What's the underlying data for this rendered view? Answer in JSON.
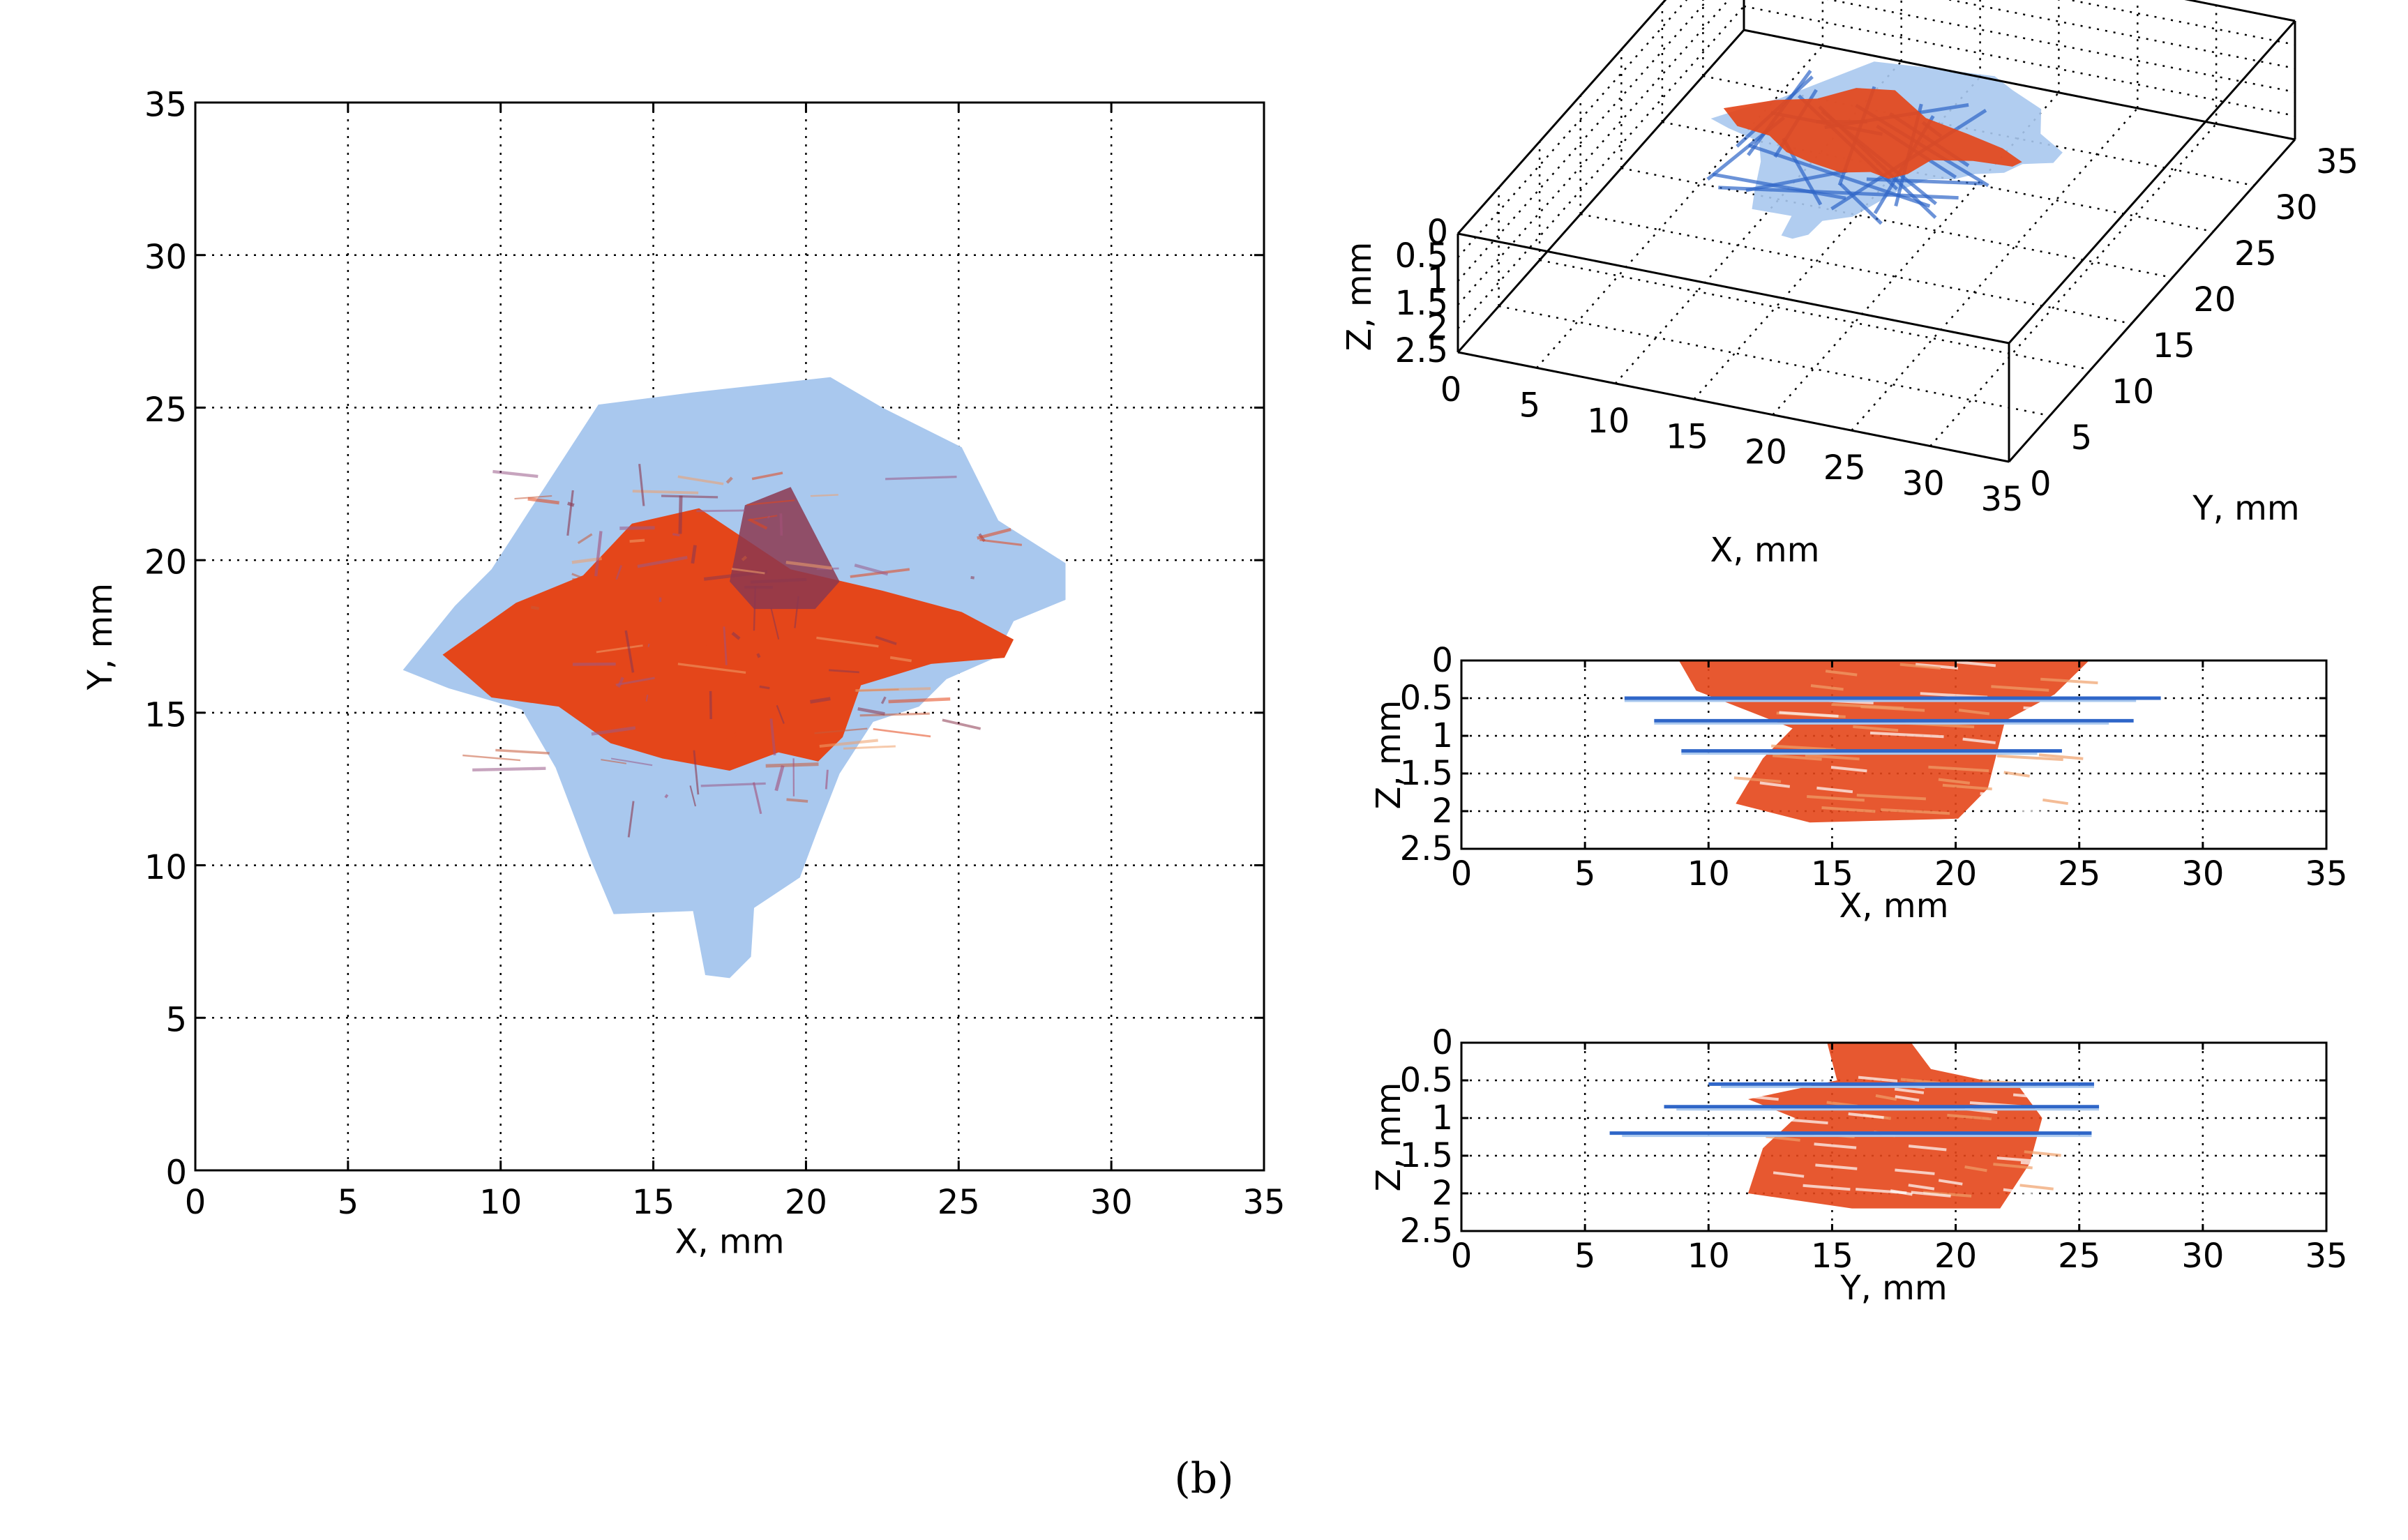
{
  "caption": "(b)",
  "colors": {
    "damage_light_blue": "#a9c8ee",
    "damage_blue": "#2f66c8",
    "damage_orange": "#e4461a",
    "damage_dark_red": "#8c3850",
    "damage_peach": "#f0a06a"
  },
  "chart_data": [
    {
      "type": "heatmap",
      "view": "top XY projection",
      "title": "",
      "xlabel": "X, mm",
      "ylabel": "Y, mm",
      "xlim": [
        0,
        35
      ],
      "ylim": [
        0,
        35
      ],
      "xticks": [
        0,
        5,
        10,
        15,
        20,
        25,
        30,
        35
      ],
      "yticks": [
        0,
        5,
        10,
        15,
        20,
        25,
        30,
        35
      ],
      "grid": true,
      "regions": [
        {
          "color": "#a9c8ee",
          "outline": [
            [
              6.8,
              16.4
            ],
            [
              8.5,
              18.5
            ],
            [
              9.7,
              19.7
            ],
            [
              10.8,
              21.4
            ],
            [
              13.2,
              25.1
            ],
            [
              16.3,
              25.5
            ],
            [
              20.8,
              26.0
            ],
            [
              22.5,
              25.0
            ],
            [
              25.1,
              23.7
            ],
            [
              26.3,
              21.3
            ],
            [
              28.5,
              19.9
            ],
            [
              28.5,
              18.7
            ],
            [
              26.8,
              18.0
            ],
            [
              26.2,
              16.8
            ],
            [
              24.6,
              16.1
            ],
            [
              23.7,
              15.2
            ],
            [
              22.2,
              14.7
            ],
            [
              21.1,
              13.0
            ],
            [
              20.4,
              11.2
            ],
            [
              19.8,
              9.6
            ],
            [
              18.3,
              8.6
            ],
            [
              18.2,
              7.0
            ],
            [
              17.5,
              6.3
            ],
            [
              16.7,
              6.4
            ],
            [
              16.3,
              8.5
            ],
            [
              13.7,
              8.4
            ],
            [
              12.9,
              10.3
            ],
            [
              11.8,
              13.2
            ],
            [
              10.7,
              15.1
            ],
            [
              8.3,
              15.8
            ],
            [
              6.8,
              16.4
            ]
          ]
        },
        {
          "color": "#e4461a",
          "outline": [
            [
              8.1,
              16.9
            ],
            [
              10.5,
              18.6
            ],
            [
              12.7,
              19.5
            ],
            [
              14.3,
              21.2
            ],
            [
              16.5,
              21.7
            ],
            [
              19.5,
              19.7
            ],
            [
              22.5,
              19.0
            ],
            [
              25.1,
              18.3
            ],
            [
              26.8,
              17.4
            ],
            [
              26.5,
              16.8
            ],
            [
              24.1,
              16.6
            ],
            [
              21.8,
              15.9
            ],
            [
              21.2,
              14.2
            ],
            [
              20.4,
              13.4
            ],
            [
              19.1,
              13.7
            ],
            [
              17.5,
              13.1
            ],
            [
              15.3,
              13.5
            ],
            [
              13.6,
              14.0
            ],
            [
              11.9,
              15.2
            ],
            [
              9.7,
              15.5
            ],
            [
              8.1,
              16.9
            ]
          ]
        },
        {
          "color": "#8c3850",
          "outline": [
            [
              17.5,
              19.3
            ],
            [
              18.0,
              21.8
            ],
            [
              19.5,
              22.4
            ],
            [
              21.1,
              19.3
            ],
            [
              20.3,
              18.4
            ],
            [
              18.3,
              18.4
            ],
            [
              17.5,
              19.3
            ]
          ]
        }
      ]
    },
    {
      "type": "heatmap",
      "view": "3D isometric",
      "title": "",
      "xlabel": "X, mm",
      "ylabel": "Y, mm",
      "zlabel": "Z, mm",
      "xlim": [
        0,
        35
      ],
      "ylim": [
        0,
        35
      ],
      "zlim": [
        0,
        2.5
      ],
      "xticks": [
        0,
        5,
        10,
        15,
        20,
        25,
        30,
        35
      ],
      "yticks": [
        0,
        5,
        10,
        15,
        20,
        25,
        30,
        35
      ],
      "zticks": [
        0,
        0.5,
        1,
        1.5,
        2,
        2.5
      ],
      "grid": true
    },
    {
      "type": "heatmap",
      "view": "side XZ projection",
      "title": "",
      "xlabel": "X, mm",
      "ylabel": "Z, mm",
      "xlim": [
        0,
        35
      ],
      "ylim": [
        0,
        2.5
      ],
      "y_reversed": true,
      "xticks": [
        0,
        5,
        10,
        15,
        20,
        25,
        30,
        35
      ],
      "yticks": [
        0,
        0.5,
        1,
        1.5,
        2,
        2.5
      ],
      "grid": true,
      "layers": [
        {
          "color": "#2f66c8",
          "z": 0.5,
          "from": 6.6,
          "to": 28.3
        },
        {
          "color": "#2f66c8",
          "z": 0.8,
          "from": 7.8,
          "to": 27.2
        },
        {
          "color": "#2f66c8",
          "z": 1.2,
          "from": 8.9,
          "to": 24.3
        }
      ]
    },
    {
      "type": "heatmap",
      "view": "side YZ projection",
      "title": "",
      "xlabel": "Y, mm",
      "ylabel": "Z, mm",
      "xlim": [
        0,
        35
      ],
      "ylim": [
        0,
        2.5
      ],
      "y_reversed": true,
      "xticks": [
        0,
        5,
        10,
        15,
        20,
        25,
        30,
        35
      ],
      "yticks": [
        0,
        0.5,
        1,
        1.5,
        2,
        2.5
      ],
      "grid": true,
      "layers": [
        {
          "color": "#2f66c8",
          "z": 0.55,
          "from": 10.0,
          "to": 25.6
        },
        {
          "color": "#2f66c8",
          "z": 0.85,
          "from": 8.2,
          "to": 25.8
        },
        {
          "color": "#2f66c8",
          "z": 1.2,
          "from": 6.0,
          "to": 25.5
        }
      ]
    }
  ]
}
